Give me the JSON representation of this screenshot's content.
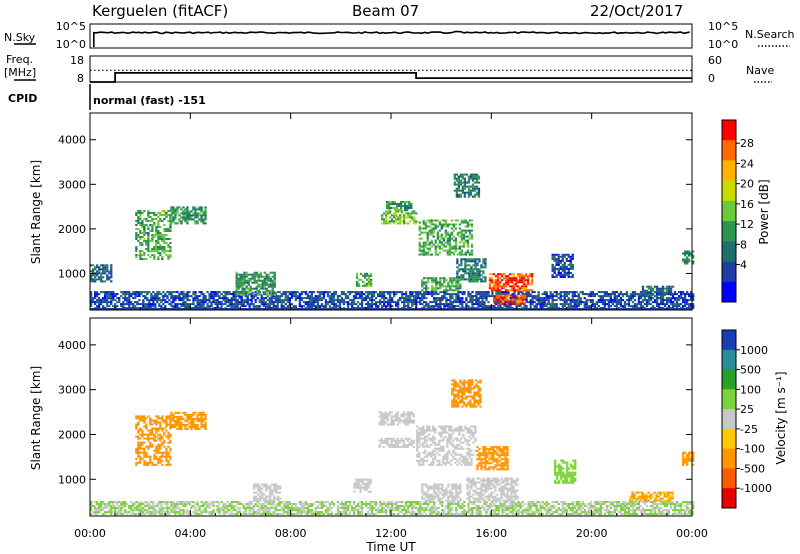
{
  "header": {
    "station": "Kerguelen (fitACF)",
    "beam": "Beam 07",
    "date": "22/Oct/2017"
  },
  "noise_panel": {
    "left_label": "N.Sky",
    "right_label": "N.Search",
    "left_ticks": [
      "10^5",
      "10^0"
    ],
    "right_ticks": [
      "10^5",
      "10^0"
    ]
  },
  "freq_panel": {
    "left_label_line1": "Freq.",
    "left_label_line2": "[MHz]",
    "right_label": "Nave",
    "left_ticks": [
      "18",
      "8"
    ],
    "right_ticks": [
      "60",
      "0"
    ]
  },
  "cpid": {
    "label": "CPID",
    "value": "normal (fast) -151"
  },
  "power_panel": {
    "ylabel": "Slant Range [km]",
    "yticks": [
      "4000",
      "3000",
      "2000",
      "1000"
    ],
    "colorbar_label": "Power [dB]",
    "colorbar_ticks": [
      "28",
      "24",
      "20",
      "16",
      "12",
      "8",
      "4"
    ],
    "colorbar_colors": [
      "#ff0000",
      "#ff6a00",
      "#ffb400",
      "#c8dc00",
      "#6ec83c",
      "#2d9650",
      "#1e6e6e",
      "#1c3fa0",
      "#0000ff"
    ]
  },
  "velocity_panel": {
    "ylabel": "Slant Range [km]",
    "yticks": [
      "4000",
      "3000",
      "2000",
      "1000"
    ],
    "colorbar_label": "Velocity [m s⁻¹]",
    "colorbar_ticks": [
      "1000",
      "500",
      "100",
      "25",
      "-25",
      "-100",
      "-500",
      "-1000"
    ],
    "colorbar_colors": [
      "#1a3cb4",
      "#2a8c96",
      "#2aa02a",
      "#7cd23c",
      "#c8c8c8",
      "#ffc800",
      "#ff9600",
      "#ff5a00",
      "#e60000"
    ]
  },
  "xaxis": {
    "ticks": [
      "00:00",
      "04:00",
      "08:00",
      "12:00",
      "16:00",
      "20:00",
      "00:00"
    ],
    "label": "Time UT"
  },
  "chart_data": [
    {
      "type": "line",
      "name": "noise",
      "x_range_hours": [
        0,
        24
      ],
      "series": [
        {
          "name": "N.Sky",
          "level": "near 10^5 throughout",
          "start_hour": 0.15
        }
      ]
    },
    {
      "type": "line",
      "name": "frequency",
      "x_range_hours": [
        0,
        24
      ],
      "ylim": [
        8,
        18
      ],
      "series": [
        {
          "name": "Freq.",
          "points": [
            [
              0,
              8
            ],
            [
              1,
              8
            ],
            [
              1,
              11.5
            ],
            [
              13,
              11.5
            ],
            [
              13,
              9.5
            ],
            [
              24,
              9.5
            ]
          ]
        },
        {
          "name": "Nave",
          "style": "dotted",
          "value": 12.5
        }
      ]
    },
    {
      "type": "heatmap",
      "name": "power",
      "x_range_hours": [
        0,
        24
      ],
      "ylim_km": [
        180,
        4600
      ],
      "zlim_db": [
        0,
        32
      ],
      "patches": [
        {
          "t0": 0.0,
          "t1": 0.8,
          "r0": 800,
          "r1": 1200,
          "value": 8
        },
        {
          "t0": 0.0,
          "t1": 24.0,
          "r0": 200,
          "r1": 600,
          "value": 6
        },
        {
          "t0": 1.8,
          "t1": 3.2,
          "r0": 1300,
          "r1": 2400,
          "value": 14
        },
        {
          "t0": 3.2,
          "t1": 4.6,
          "r0": 2100,
          "r1": 2500,
          "value": 12
        },
        {
          "t0": 5.8,
          "t1": 7.4,
          "r0": 500,
          "r1": 1000,
          "value": 12
        },
        {
          "t0": 10.6,
          "t1": 11.2,
          "r0": 700,
          "r1": 1000,
          "value": 14
        },
        {
          "t0": 11.6,
          "t1": 13.0,
          "r0": 2100,
          "r1": 2400,
          "value": 16
        },
        {
          "t0": 11.8,
          "t1": 12.8,
          "r0": 2400,
          "r1": 2600,
          "value": 12
        },
        {
          "t0": 13.1,
          "t1": 15.2,
          "r0": 1400,
          "r1": 2200,
          "value": 14
        },
        {
          "t0": 13.2,
          "t1": 14.8,
          "r0": 600,
          "r1": 900,
          "value": 14
        },
        {
          "t0": 14.6,
          "t1": 15.8,
          "r0": 800,
          "r1": 1300,
          "value": 10
        },
        {
          "t0": 14.5,
          "t1": 15.5,
          "r0": 2700,
          "r1": 3200,
          "value": 10
        },
        {
          "t0": 15.9,
          "t1": 17.6,
          "r0": 600,
          "r1": 1000,
          "value": 28
        },
        {
          "t0": 16.1,
          "t1": 17.3,
          "r0": 300,
          "r1": 500,
          "value": 28
        },
        {
          "t0": 18.4,
          "t1": 19.2,
          "r0": 900,
          "r1": 1400,
          "value": 6
        },
        {
          "t0": 22.0,
          "t1": 23.2,
          "r0": 500,
          "r1": 700,
          "value": 8
        },
        {
          "t0": 23.6,
          "t1": 24.0,
          "r0": 1200,
          "r1": 1500,
          "value": 12
        }
      ]
    },
    {
      "type": "heatmap",
      "name": "velocity",
      "x_range_hours": [
        0,
        24
      ],
      "ylim_km": [
        180,
        4600
      ],
      "patches": [
        {
          "t0": 0.0,
          "t1": 24.0,
          "r0": 200,
          "r1": 500,
          "value": 25
        },
        {
          "t0": 1.8,
          "t1": 3.2,
          "r0": 1300,
          "r1": 2400,
          "value": -300
        },
        {
          "t0": 3.2,
          "t1": 4.6,
          "r0": 2100,
          "r1": 2500,
          "value": -200
        },
        {
          "t0": 6.5,
          "t1": 7.6,
          "r0": 500,
          "r1": 900,
          "value": 0
        },
        {
          "t0": 10.5,
          "t1": 11.2,
          "r0": 700,
          "r1": 1000,
          "value": 0
        },
        {
          "t0": 11.5,
          "t1": 12.9,
          "r0": 2200,
          "r1": 2500,
          "value": 0
        },
        {
          "t0": 11.5,
          "t1": 12.9,
          "r0": 1700,
          "r1": 1900,
          "value": 0
        },
        {
          "t0": 13.0,
          "t1": 15.4,
          "r0": 1300,
          "r1": 2200,
          "value": 0
        },
        {
          "t0": 13.2,
          "t1": 14.8,
          "r0": 500,
          "r1": 900,
          "value": 0
        },
        {
          "t0": 14.4,
          "t1": 15.6,
          "r0": 2600,
          "r1": 3200,
          "value": -250
        },
        {
          "t0": 15.0,
          "t1": 17.0,
          "r0": 500,
          "r1": 1000,
          "value": 0
        },
        {
          "t0": 15.4,
          "t1": 16.6,
          "r0": 1200,
          "r1": 1700,
          "value": -300
        },
        {
          "t0": 18.5,
          "t1": 19.3,
          "r0": 900,
          "r1": 1400,
          "value": 60
        },
        {
          "t0": 21.5,
          "t1": 23.2,
          "r0": 500,
          "r1": 700,
          "value": -120
        },
        {
          "t0": 23.6,
          "t1": 24.0,
          "r0": 1300,
          "r1": 1600,
          "value": -300
        }
      ]
    }
  ]
}
